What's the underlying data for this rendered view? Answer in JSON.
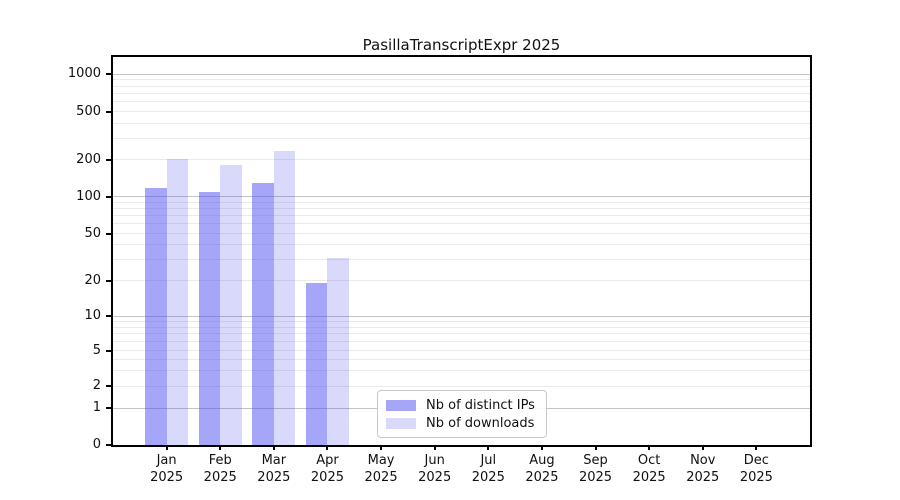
{
  "chart_data": {
    "type": "bar",
    "title": "PasillaTranscriptExpr 2025",
    "categories": [
      "Jan",
      "Feb",
      "Mar",
      "Apr",
      "May",
      "Jun",
      "Jul",
      "Aug",
      "Sep",
      "Oct",
      "Nov",
      "Dec"
    ],
    "year_label": "2025",
    "series": [
      {
        "name": "Nb of distinct IPs",
        "color": "rgba(77,77,241,0.5)",
        "legend_color": "#a6a6f8",
        "values": [
          118,
          108,
          128,
          19,
          0,
          0,
          0,
          0,
          0,
          0,
          0,
          0
        ]
      },
      {
        "name": "Nb of downloads",
        "color": "rgba(77,77,241,0.21)",
        "legend_color": "#d9d9fb",
        "values": [
          203,
          182,
          233,
          31,
          0,
          0,
          0,
          0,
          0,
          0,
          0,
          0
        ]
      }
    ],
    "yscale": "symlog",
    "yticks": [
      0,
      1,
      2,
      5,
      10,
      20,
      50,
      100,
      200,
      500,
      1000
    ],
    "ylim": [
      0,
      1300
    ],
    "xlabel": "",
    "ylabel": "",
    "grid": "horizontal major and minor",
    "legend_position": "lower center"
  }
}
